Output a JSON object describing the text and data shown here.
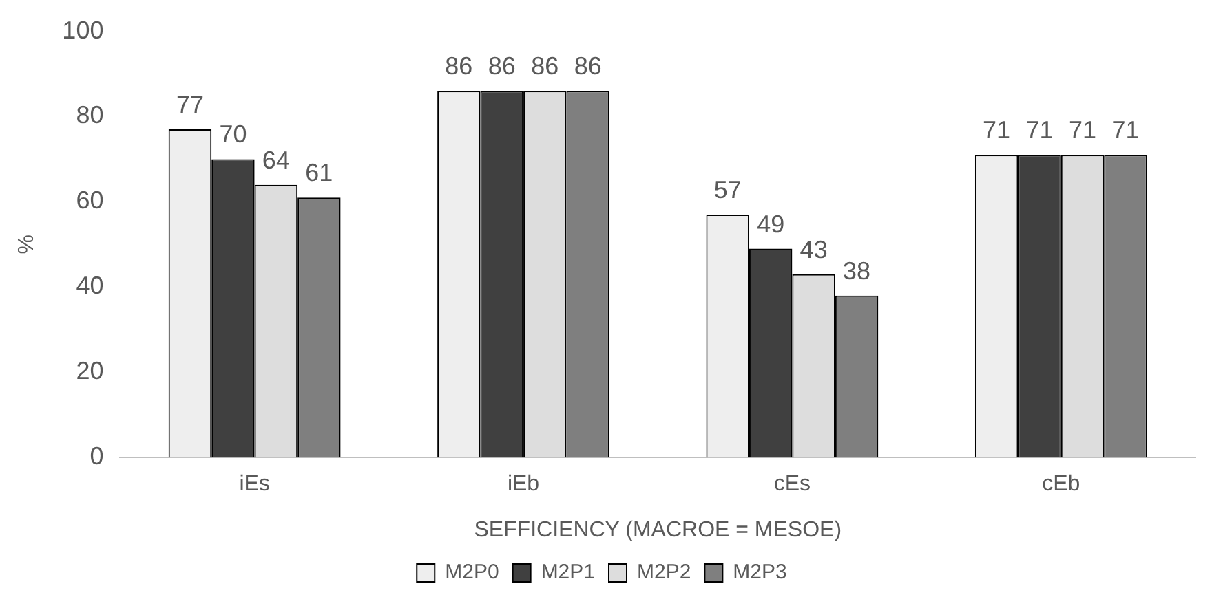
{
  "chart_data": {
    "type": "bar",
    "categories": [
      "iEs",
      "iEb",
      "cEs",
      "cEb"
    ],
    "series": [
      {
        "name": "M2P0",
        "color": "#eeeeee",
        "values": [
          77,
          86,
          57,
          71
        ]
      },
      {
        "name": "M2P1",
        "color": "#404040",
        "values": [
          70,
          86,
          49,
          71
        ]
      },
      {
        "name": "M2P2",
        "color": "#dddddd",
        "values": [
          64,
          86,
          43,
          71
        ]
      },
      {
        "name": "M2P3",
        "color": "#7f7f7f",
        "values": [
          61,
          86,
          38,
          71
        ]
      }
    ],
    "xlabel": "SEFFICIENCY (MACROE = MESOE)",
    "ylabel": "%",
    "ylim": [
      0,
      100
    ],
    "yticks": [
      0,
      20,
      40,
      60,
      80,
      100
    ],
    "grid": false,
    "legend": "bottom",
    "data_labels": true
  }
}
